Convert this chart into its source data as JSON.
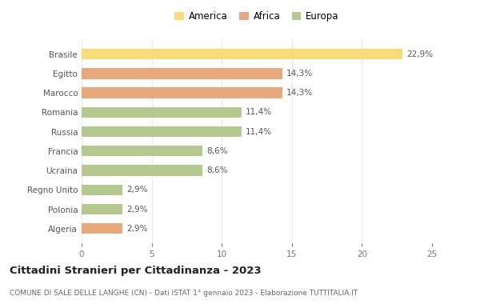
{
  "categories": [
    "Brasile",
    "Egitto",
    "Marocco",
    "Romania",
    "Russia",
    "Francia",
    "Ucraina",
    "Regno Unito",
    "Polonia",
    "Algeria"
  ],
  "values": [
    22.9,
    14.3,
    14.3,
    11.4,
    11.4,
    8.6,
    8.6,
    2.9,
    2.9,
    2.9
  ],
  "labels": [
    "22,9%",
    "14,3%",
    "14,3%",
    "11,4%",
    "11,4%",
    "8,6%",
    "8,6%",
    "2,9%",
    "2,9%",
    "2,9%"
  ],
  "colors": [
    "#FBDA7A",
    "#E8A87C",
    "#E8A87C",
    "#B5C98E",
    "#B5C98E",
    "#B5C98E",
    "#B5C98E",
    "#B5C98E",
    "#B5C98E",
    "#E8A87C"
  ],
  "legend_labels": [
    "America",
    "Africa",
    "Europa"
  ],
  "legend_colors": [
    "#FBDA7A",
    "#E8A87C",
    "#B5C98E"
  ],
  "title": "Cittadini Stranieri per Cittadinanza - 2023",
  "subtitle": "COMUNE DI SALE DELLE LANGHE (CN) - Dati ISTAT 1° gennaio 2023 - Elaborazione TUTTITALIA.IT",
  "xlim": [
    0,
    25
  ],
  "xticks": [
    0,
    5,
    10,
    15,
    20,
    25
  ],
  "bg_color": "#FFFFFF",
  "grid_color": "#E8E8E8",
  "bar_height": 0.55
}
